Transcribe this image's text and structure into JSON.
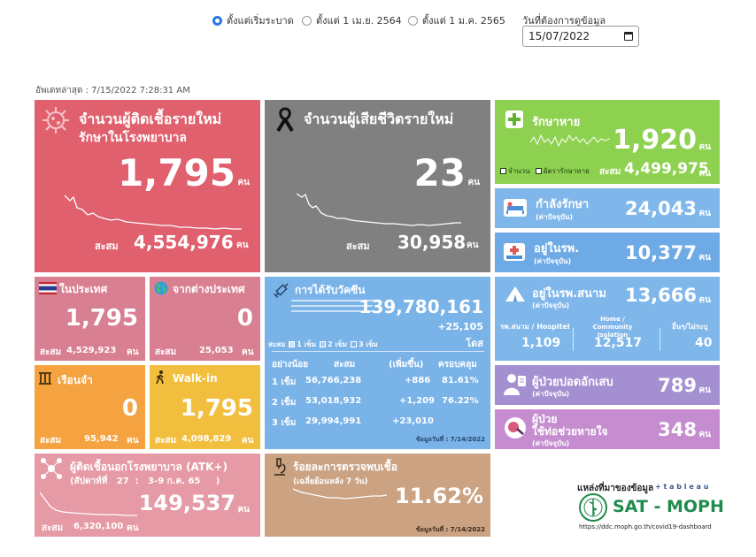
{
  "filters": {
    "options": [
      {
        "label": "ตั้งแต่เริ่มระบาด",
        "selected": true
      },
      {
        "label": "ตั้งแต่ 1 เม.ย. 2564",
        "selected": false
      },
      {
        "label": "ตั้งแต่ 1 ม.ค. 2565",
        "selected": false
      }
    ],
    "date_label": "วันที่ต้องการดูข้อมูล",
    "date_value": "15/07/2022"
  },
  "last_update": "อัพเดทล่าสุด : 7/15/2022 7:28:31 AM",
  "new_cases": {
    "title": "จำนวนผู้ติดเชื้อรายใหม่",
    "subtitle": "รักษาในโรงพยาบาล",
    "value": "1,795",
    "unit": "คน",
    "cum_label": "สะสม",
    "cum_value": "4,554,976",
    "cum_unit": "คน"
  },
  "new_deaths": {
    "title": "จำนวนผู้เสียชีวิตรายใหม่",
    "value": "23",
    "unit": "คน",
    "cum_label": "สะสม",
    "cum_value": "30,958",
    "cum_unit": "คน"
  },
  "recovered": {
    "title": "รักษาหาย",
    "value": "1,920",
    "unit": "คน",
    "legend1": "จำนวน",
    "legend2": "อัตรารักษาหาย",
    "cum_label": "สะสม",
    "cum_value": "4,499,975",
    "cum_unit": "คน"
  },
  "treating": {
    "title": "กำลังรักษา",
    "sub": "(ค่าปัจจุบัน)",
    "value": "24,043",
    "unit": "คน"
  },
  "in_hospital": {
    "title": "อยู่ในรพ.",
    "sub": "(ค่าปัจจุบัน)",
    "value": "10,377",
    "unit": "คน"
  },
  "field_hospital": {
    "title": "อยู่ในรพ.สนาม",
    "sub": "(ค่าปัจจุบัน)",
    "value": "13,666",
    "unit": "คน",
    "c1_label": "รพ.สนาม / Hospitel",
    "c1_value": "1,109",
    "c2_label": "Home / Community Isolation",
    "c2_value": "12,517",
    "c3_label": "อื่นๆ/ไม่ระบุ",
    "c3_value": "40"
  },
  "pneumonia": {
    "title": "ผู้ป่วยปอดอักเสบ",
    "sub": "(ค่าปัจจุบัน)",
    "value": "789",
    "unit": "คน"
  },
  "ventilator": {
    "title1": "ผู้ป่วย",
    "title2": "ใช้ท่อช่วยหายใจ",
    "sub": "(ค่าปัจจุบัน)",
    "value": "348",
    "unit": "คน"
  },
  "domestic": {
    "title": "ในประเทศ",
    "value": "1,795",
    "cum_label": "สะสม",
    "cum_value": "4,529,923",
    "cum_unit": "คน"
  },
  "imported": {
    "title": "จากต่างประเทศ",
    "value": "0",
    "cum_label": "สะสม",
    "cum_value": "25,053",
    "cum_unit": "คน"
  },
  "prison": {
    "title": "เรือนจำ",
    "value": "0",
    "cum_label": "สะสม",
    "cum_value": "95,942",
    "cum_unit": "คน"
  },
  "walkin": {
    "title": "Walk-in",
    "value": "1,795",
    "cum_label": "สะสม",
    "cum_value": "4,098,829",
    "cum_unit": "คน"
  },
  "vaccine": {
    "title": "การได้รับวัคซีน",
    "total": "139,780,161",
    "delta": "+25,105",
    "unit": "โดส",
    "legend_label": "สะสม",
    "legend": [
      "1 เข็ม",
      "2 เข็ม",
      "3 เข็ม"
    ],
    "headers": [
      "อย่างน้อย",
      "สะสม",
      "(เพิ่มขึ้น)",
      "ครอบคลุม"
    ],
    "rows": [
      {
        "dose": "1 เข็ม",
        "cum": "56,766,238",
        "inc": "+886",
        "cov": "81.61%"
      },
      {
        "dose": "2 เข็ม",
        "cum": "53,018,932",
        "inc": "+1,209",
        "cov": "76.22%"
      },
      {
        "dose": "3 เข็ม",
        "cum": "29,994,991",
        "inc": "+23,010",
        "cov": ""
      }
    ],
    "footnote": "ข้อมูลวันที่ : 7/14/2022"
  },
  "atk": {
    "title": "ผู้ติดเชื้อนอกโรงพยาบาล (ATK+)",
    "week": "(สัปดาห์ที่   27  :   3-9 ก.ค. 65     )",
    "value": "149,537",
    "unit": "คน",
    "cum_label": "สะสม",
    "cum_value": "6,320,100",
    "cum_unit": "คน"
  },
  "positivity": {
    "title": "ร้อยละการตรวจพบเชื้อ",
    "sub": "(เฉลี่ยย้อนหลัง 7 วัน)",
    "value": "11.62%",
    "footnote": "ข้อมูลวันที่ : 7/14/2022"
  },
  "source": {
    "label": "แหล่งที่มาของข้อมูล",
    "tableau": "+ t a b l e a u",
    "brand": "SAT - MOPH",
    "url": "https://ddc.moph.go.th/covid19-dashboard"
  },
  "colors": {
    "red": "#e0606e",
    "gray": "#808080",
    "green": "#8ed150",
    "blue_light": "#7fb7ea",
    "blue": "#6eaae6",
    "pink": "#d97f92",
    "orange": "#f4a340",
    "yellow": "#f2be3e",
    "vaccine_blue": "#79b3e8",
    "purple": "#a48fd1",
    "violet": "#c58dcf",
    "atk_pink": "#e59aa5",
    "tan": "#cba383",
    "brand_green": "#1f8b4c"
  }
}
